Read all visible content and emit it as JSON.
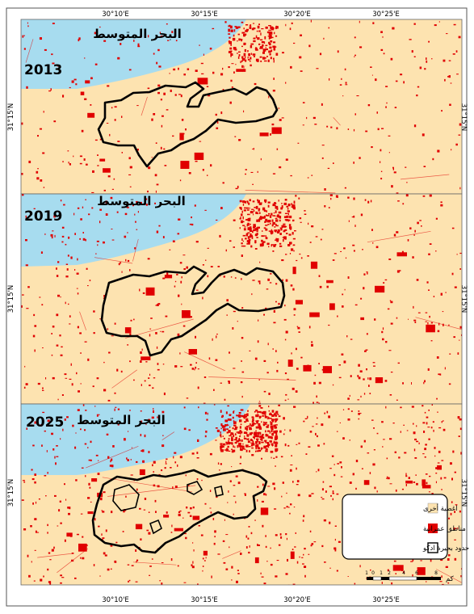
{
  "sea_label": "البحر المتوسط",
  "panels": [
    {
      "year": "2013",
      "urban_density": 0.55
    },
    {
      "year": "2019",
      "urban_density": 0.9
    },
    {
      "year": "2025",
      "urban_density": 1.2
    }
  ],
  "axes": {
    "top_ticks": [
      "30°10'E",
      "30°15'E",
      "30°20'E",
      "30°25'E"
    ],
    "bottom_ticks": [
      "30°10'E",
      "30°15'E",
      "30°20'E",
      "30°25'E"
    ],
    "left_tick": "31°15'N",
    "right_tick": "31°15'N"
  },
  "legend": {
    "items": [
      {
        "label": "اغطية أخرى",
        "color": "#fde3b0"
      },
      {
        "label": "مناطق عمرانية",
        "color": "#e00000"
      },
      {
        "label": "حدود بحيرة ادكو",
        "color": "#ffffff"
      }
    ]
  },
  "scale_bar": {
    "unit": "كم",
    "ticks": [
      "1",
      "0",
      "1",
      "2",
      "4",
      "6",
      "8"
    ]
  },
  "colors": {
    "land": "#fde3b0",
    "sea": "#a7dcef",
    "urban": "#e00000",
    "boundary": "#000000",
    "frame": "#555555"
  }
}
